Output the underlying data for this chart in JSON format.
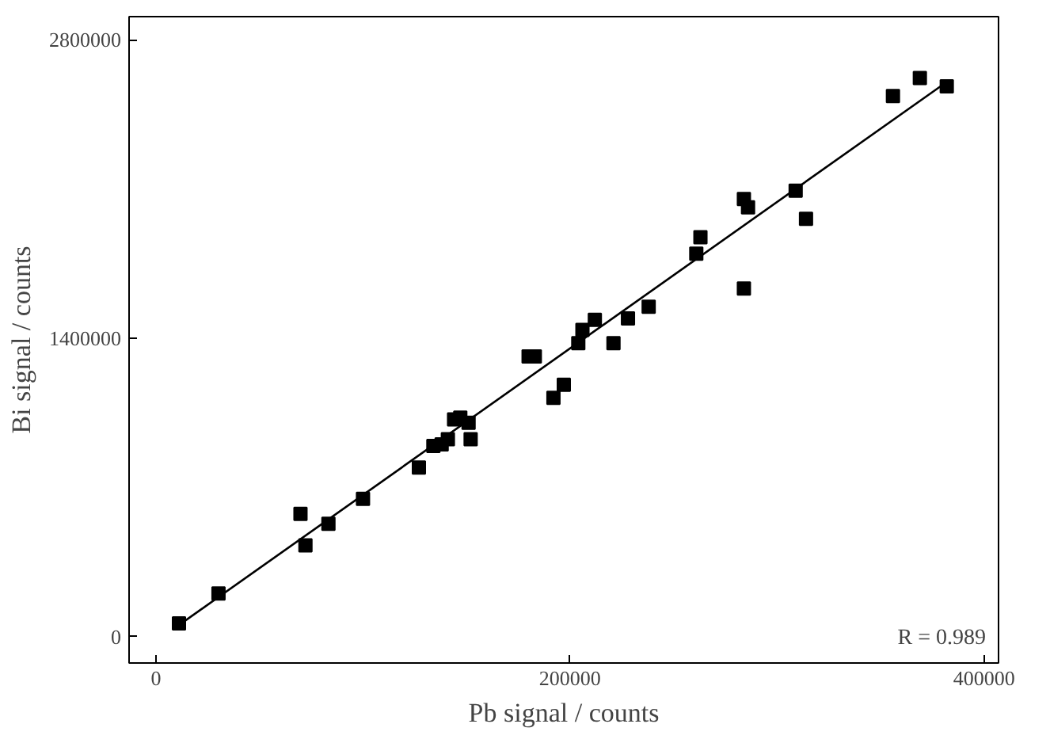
{
  "chart_data": {
    "type": "scatter",
    "xlabel": "Pb signal / counts",
    "ylabel": "Bi signal / counts",
    "xlim": [
      -13000,
      407000
    ],
    "ylim": [
      -124000,
      2909000
    ],
    "xticks": [
      0,
      200000,
      400000
    ],
    "yticks": [
      0,
      1400000,
      2800000
    ],
    "grid": false,
    "annotations": [
      "R = 0.989"
    ],
    "series": [
      {
        "color": "#000000",
        "marker": "square",
        "x": [
          11100,
          30200,
          69800,
          72200,
          83300,
          100000,
          127000,
          134000,
          138000,
          141000,
          144000,
          147000,
          151000,
          152000,
          180000,
          183000,
          192000,
          197000,
          204000,
          206000,
          212000,
          221000,
          228000,
          238000,
          261000,
          263000,
          284000,
          284000,
          286000,
          309000,
          314000,
          356000,
          369000,
          382000
        ],
        "values": [
          62000,
          202000,
          576000,
          428000,
          529000,
          646000,
          793000,
          894000,
          902000,
          926000,
          1019000,
          1027000,
          1003000,
          926000,
          1314000,
          1314000,
          1120000,
          1182000,
          1377000,
          1439000,
          1486000,
          1377000,
          1493000,
          1548000,
          1797000,
          1874000,
          1633000,
          2053000,
          2014000,
          2092000,
          1960000,
          2536000,
          2621000,
          2582000
        ]
      },
      {
        "type": "line",
        "color": "#000000",
        "line_style": "solid",
        "x": [
          11100,
          379000
        ],
        "values": [
          54000,
          2582000
        ]
      }
    ]
  }
}
